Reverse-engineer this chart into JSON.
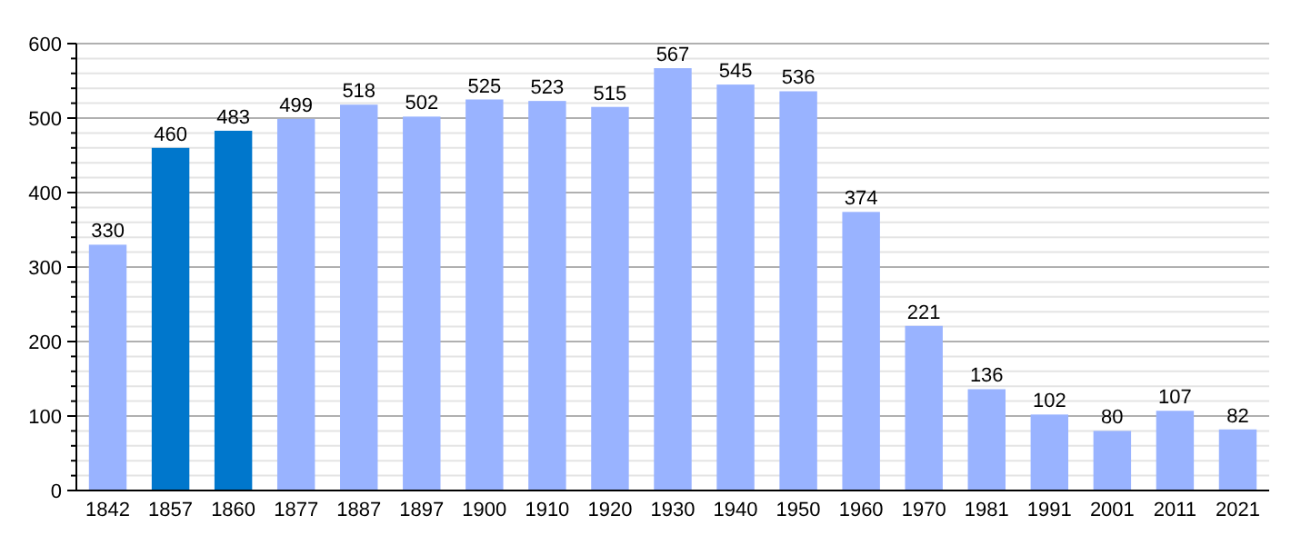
{
  "chart_data": {
    "type": "bar",
    "categories": [
      "1842",
      "1857",
      "1860",
      "1877",
      "1887",
      "1897",
      "1900",
      "1910",
      "1920",
      "1930",
      "1940",
      "1950",
      "1960",
      "1970",
      "1981",
      "1991",
      "2001",
      "2011",
      "2021"
    ],
    "values": [
      330,
      460,
      483,
      499,
      518,
      502,
      525,
      523,
      515,
      567,
      545,
      536,
      374,
      221,
      136,
      102,
      80,
      107,
      82
    ],
    "colors": [
      "#99b3ff",
      "#0077cc",
      "#0077cc",
      "#99b3ff",
      "#99b3ff",
      "#99b3ff",
      "#99b3ff",
      "#99b3ff",
      "#99b3ff",
      "#99b3ff",
      "#99b3ff",
      "#99b3ff",
      "#99b3ff",
      "#99b3ff",
      "#99b3ff",
      "#99b3ff",
      "#99b3ff",
      "#99b3ff",
      "#99b3ff"
    ],
    "ylim": [
      0,
      600
    ],
    "yticks": [
      0,
      {
        "value": 20,
        "label": null
      },
      {
        "value": 40,
        "label": null
      },
      {
        "value": 60,
        "label": null
      },
      {
        "value": 80,
        "label": null
      },
      100,
      {
        "value": 120,
        "label": null
      },
      {
        "value": 140,
        "label": null
      },
      {
        "value": 160,
        "label": null
      },
      {
        "value": 180,
        "label": null
      },
      200,
      {
        "value": 220,
        "label": null
      },
      {
        "value": 240,
        "label": null
      },
      {
        "value": 260,
        "label": null
      },
      {
        "value": 280,
        "label": null
      },
      300,
      {
        "value": 320,
        "label": null
      },
      {
        "value": 340,
        "label": null
      },
      {
        "value": 360,
        "label": null
      },
      {
        "value": 380,
        "label": null
      },
      400,
      {
        "value": 420,
        "label": null
      },
      {
        "value": 440,
        "label": null
      },
      {
        "value": 460,
        "label": null
      },
      {
        "value": 480,
        "label": null
      },
      500,
      {
        "value": 520,
        "label": null
      },
      {
        "value": 540,
        "label": null
      },
      {
        "value": 560,
        "label": null
      },
      {
        "value": 580,
        "label": null
      },
      600
    ],
    "grid": true,
    "data_labels": true
  }
}
